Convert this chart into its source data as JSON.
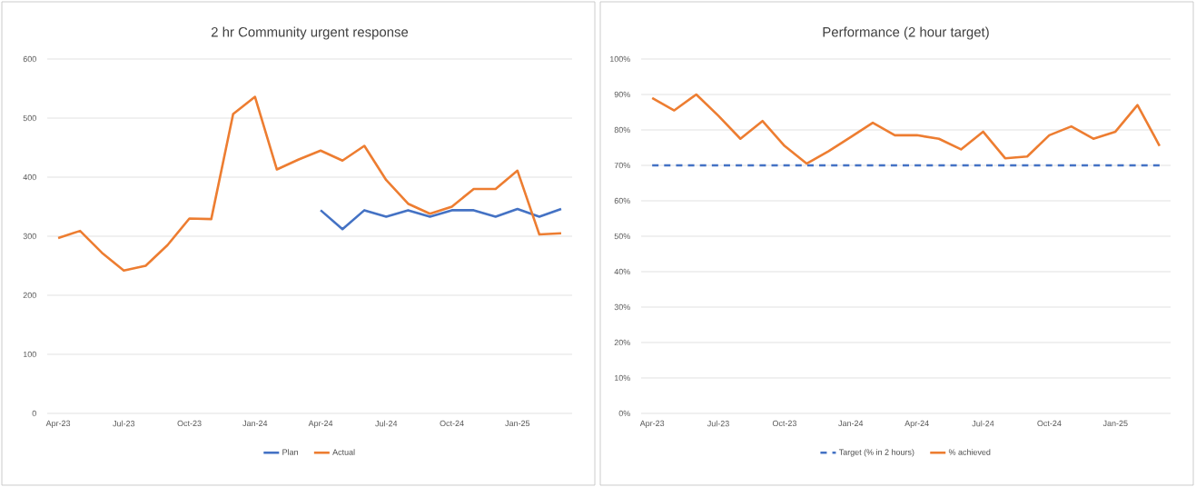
{
  "chart_data": [
    {
      "type": "line",
      "title": "2 hr Community urgent response",
      "categories": [
        "Apr-23",
        null,
        null,
        "Jul-23",
        null,
        null,
        "Oct-23",
        null,
        null,
        "Jan-24",
        null,
        null,
        "Apr-24",
        null,
        null,
        "Jul-24",
        null,
        null,
        "Oct-24",
        null,
        null,
        "Jan-25",
        null,
        null
      ],
      "series": [
        {
          "name": "Plan",
          "color": "#4472c4",
          "values": [
            null,
            null,
            null,
            null,
            null,
            null,
            null,
            null,
            null,
            null,
            null,
            null,
            344,
            312,
            344,
            333,
            344,
            333,
            344,
            344,
            333,
            346,
            333,
            346
          ]
        },
        {
          "name": "Actual",
          "color": "#ed7d31",
          "values": [
            297,
            309,
            272,
            242,
            250,
            285,
            330,
            329,
            507,
            536,
            413,
            430,
            445,
            428,
            453,
            395,
            355,
            338,
            350,
            380,
            380,
            411,
            303,
            305
          ]
        }
      ],
      "ylim": [
        0,
        600
      ],
      "yticks": [
        0,
        100,
        200,
        300,
        400,
        500,
        600
      ],
      "grid": "y",
      "legend": "bottom"
    },
    {
      "type": "line",
      "title": "Performance (2 hour target)",
      "categories": [
        "Apr-23",
        null,
        null,
        "Jul-23",
        null,
        null,
        "Oct-23",
        null,
        null,
        "Jan-24",
        null,
        null,
        "Apr-24",
        null,
        null,
        "Jul-24",
        null,
        null,
        "Oct-24",
        null,
        null,
        "Jan-25",
        null,
        null
      ],
      "series": [
        {
          "name": "Target (% in 2 hours)",
          "color": "#4472c4",
          "line_style": "dashed",
          "values": [
            70,
            70,
            70,
            70,
            70,
            70,
            70,
            70,
            70,
            70,
            70,
            70,
            70,
            70,
            70,
            70,
            70,
            70,
            70,
            70,
            70,
            70,
            70,
            70
          ]
        },
        {
          "name": "% achieved",
          "color": "#ed7d31",
          "values": [
            89,
            85.5,
            90,
            84,
            77.5,
            82.5,
            75.5,
            70.5,
            74,
            78,
            82,
            78.5,
            78.5,
            77.5,
            74.5,
            79.5,
            72,
            72.5,
            78.5,
            81,
            77.5,
            79.5,
            87,
            75.5
          ]
        }
      ],
      "ylim": [
        0,
        100
      ],
      "yticks": [
        {
          "value": 0,
          "label": "0%"
        },
        {
          "value": 10,
          "label": "10%"
        },
        {
          "value": 20,
          "label": "20%"
        },
        {
          "value": 30,
          "label": "30%"
        },
        {
          "value": 40,
          "label": "40%"
        },
        {
          "value": 50,
          "label": "50%"
        },
        {
          "value": 60,
          "label": "60%"
        },
        {
          "value": 70,
          "label": "70%"
        },
        {
          "value": 80,
          "label": "80%"
        },
        {
          "value": 90,
          "label": "90%"
        },
        {
          "value": 100,
          "label": "100%"
        }
      ],
      "grid": "y",
      "legend": "bottom"
    }
  ]
}
